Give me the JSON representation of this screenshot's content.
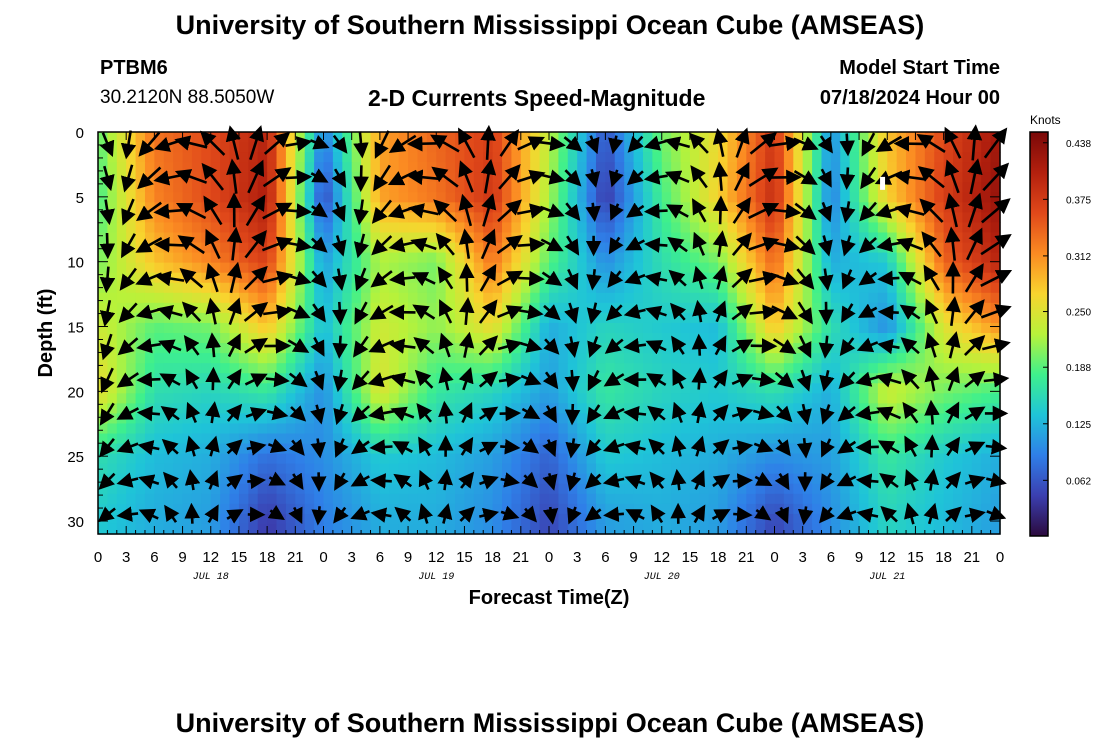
{
  "header": {
    "title": "University of Southern Mississippi Ocean Cube (AMSEAS)",
    "station": "PTBM6",
    "location": "30.2120N  88.5050W",
    "subtitle": "2-D Currents Speed-Magnitude",
    "model_start_label": "Model Start Time",
    "model_start_value": "07/18/2024 Hour 00"
  },
  "footer": {
    "title": "University of Southern Mississippi Ocean Cube (AMSEAS)"
  },
  "chart_data": {
    "type": "heatmap",
    "title": "2-D Currents Speed-Magnitude",
    "xlabel": "Forecast Time(Z)",
    "ylabel": "Depth (ft)",
    "x_range_hours": [
      0,
      96
    ],
    "y_range_ft": [
      0,
      31
    ],
    "x_tick_labels": [
      "0",
      "3",
      "6",
      "9",
      "12",
      "15",
      "18",
      "21",
      "0",
      "3",
      "6",
      "9",
      "12",
      "15",
      "18",
      "21",
      "0",
      "3",
      "6",
      "9",
      "12",
      "15",
      "18",
      "21",
      "0",
      "3",
      "6",
      "9",
      "12",
      "15",
      "18",
      "21",
      "0"
    ],
    "y_ticks": [
      0,
      5,
      10,
      15,
      20,
      25,
      30
    ],
    "date_labels": [
      {
        "label": "JUL 18",
        "hour": 12
      },
      {
        "label": "JUL 19",
        "hour": 36
      },
      {
        "label": "JUL 20",
        "hour": 60
      },
      {
        "label": "JUL 21",
        "hour": 84
      }
    ],
    "colorbar": {
      "unit": "Knots",
      "min": 0.0,
      "max": 0.45,
      "tick_labels": [
        "0.062",
        "0.125",
        "0.188",
        "0.250",
        "0.312",
        "0.375",
        "0.438"
      ],
      "tick_values": [
        0.062,
        0.125,
        0.188,
        0.25,
        0.312,
        0.375,
        0.438
      ],
      "colors": [
        "#2b0a3d",
        "#3b3fb0",
        "#2f7fe8",
        "#1fc4d8",
        "#3ff08c",
        "#b8f23a",
        "#f8d42e",
        "#fb8a22",
        "#e0481a",
        "#b3200e",
        "#7a0808"
      ]
    },
    "hours": [
      0,
      6,
      12,
      18,
      24,
      30,
      36,
      42,
      48,
      54,
      60,
      66,
      72,
      78,
      84,
      90,
      96
    ],
    "depths_ft": [
      0,
      5,
      10,
      15,
      20,
      25,
      30
    ],
    "speed_knots": [
      [
        0.19,
        0.33,
        0.36,
        0.4,
        0.09,
        0.3,
        0.34,
        0.37,
        0.23,
        0.06,
        0.2,
        0.26,
        0.38,
        0.1,
        0.28,
        0.36,
        0.42
      ],
      [
        0.18,
        0.32,
        0.36,
        0.41,
        0.05,
        0.3,
        0.33,
        0.38,
        0.22,
        0.04,
        0.18,
        0.27,
        0.39,
        0.09,
        0.27,
        0.37,
        0.43
      ],
      [
        0.2,
        0.28,
        0.32,
        0.37,
        0.11,
        0.22,
        0.2,
        0.33,
        0.19,
        0.1,
        0.16,
        0.2,
        0.34,
        0.12,
        0.14,
        0.34,
        0.4
      ],
      [
        0.24,
        0.19,
        0.2,
        0.28,
        0.13,
        0.24,
        0.21,
        0.26,
        0.12,
        0.15,
        0.14,
        0.13,
        0.28,
        0.16,
        0.1,
        0.25,
        0.31
      ],
      [
        0.26,
        0.16,
        0.15,
        0.17,
        0.1,
        0.25,
        0.17,
        0.15,
        0.11,
        0.17,
        0.15,
        0.14,
        0.16,
        0.12,
        0.24,
        0.2,
        0.18
      ],
      [
        0.16,
        0.13,
        0.12,
        0.08,
        0.1,
        0.14,
        0.13,
        0.11,
        0.07,
        0.14,
        0.13,
        0.12,
        0.1,
        0.11,
        0.17,
        0.14,
        0.12
      ],
      [
        0.14,
        0.12,
        0.11,
        0.04,
        0.09,
        0.12,
        0.12,
        0.1,
        0.05,
        0.11,
        0.12,
        0.11,
        0.05,
        0.1,
        0.15,
        0.13,
        0.11
      ]
    ],
    "vector_grid": {
      "hour_step": 2.25,
      "depth_step_ft": 2.6
    },
    "marker": {
      "hour": 83.5,
      "depth_ft": 4
    }
  }
}
